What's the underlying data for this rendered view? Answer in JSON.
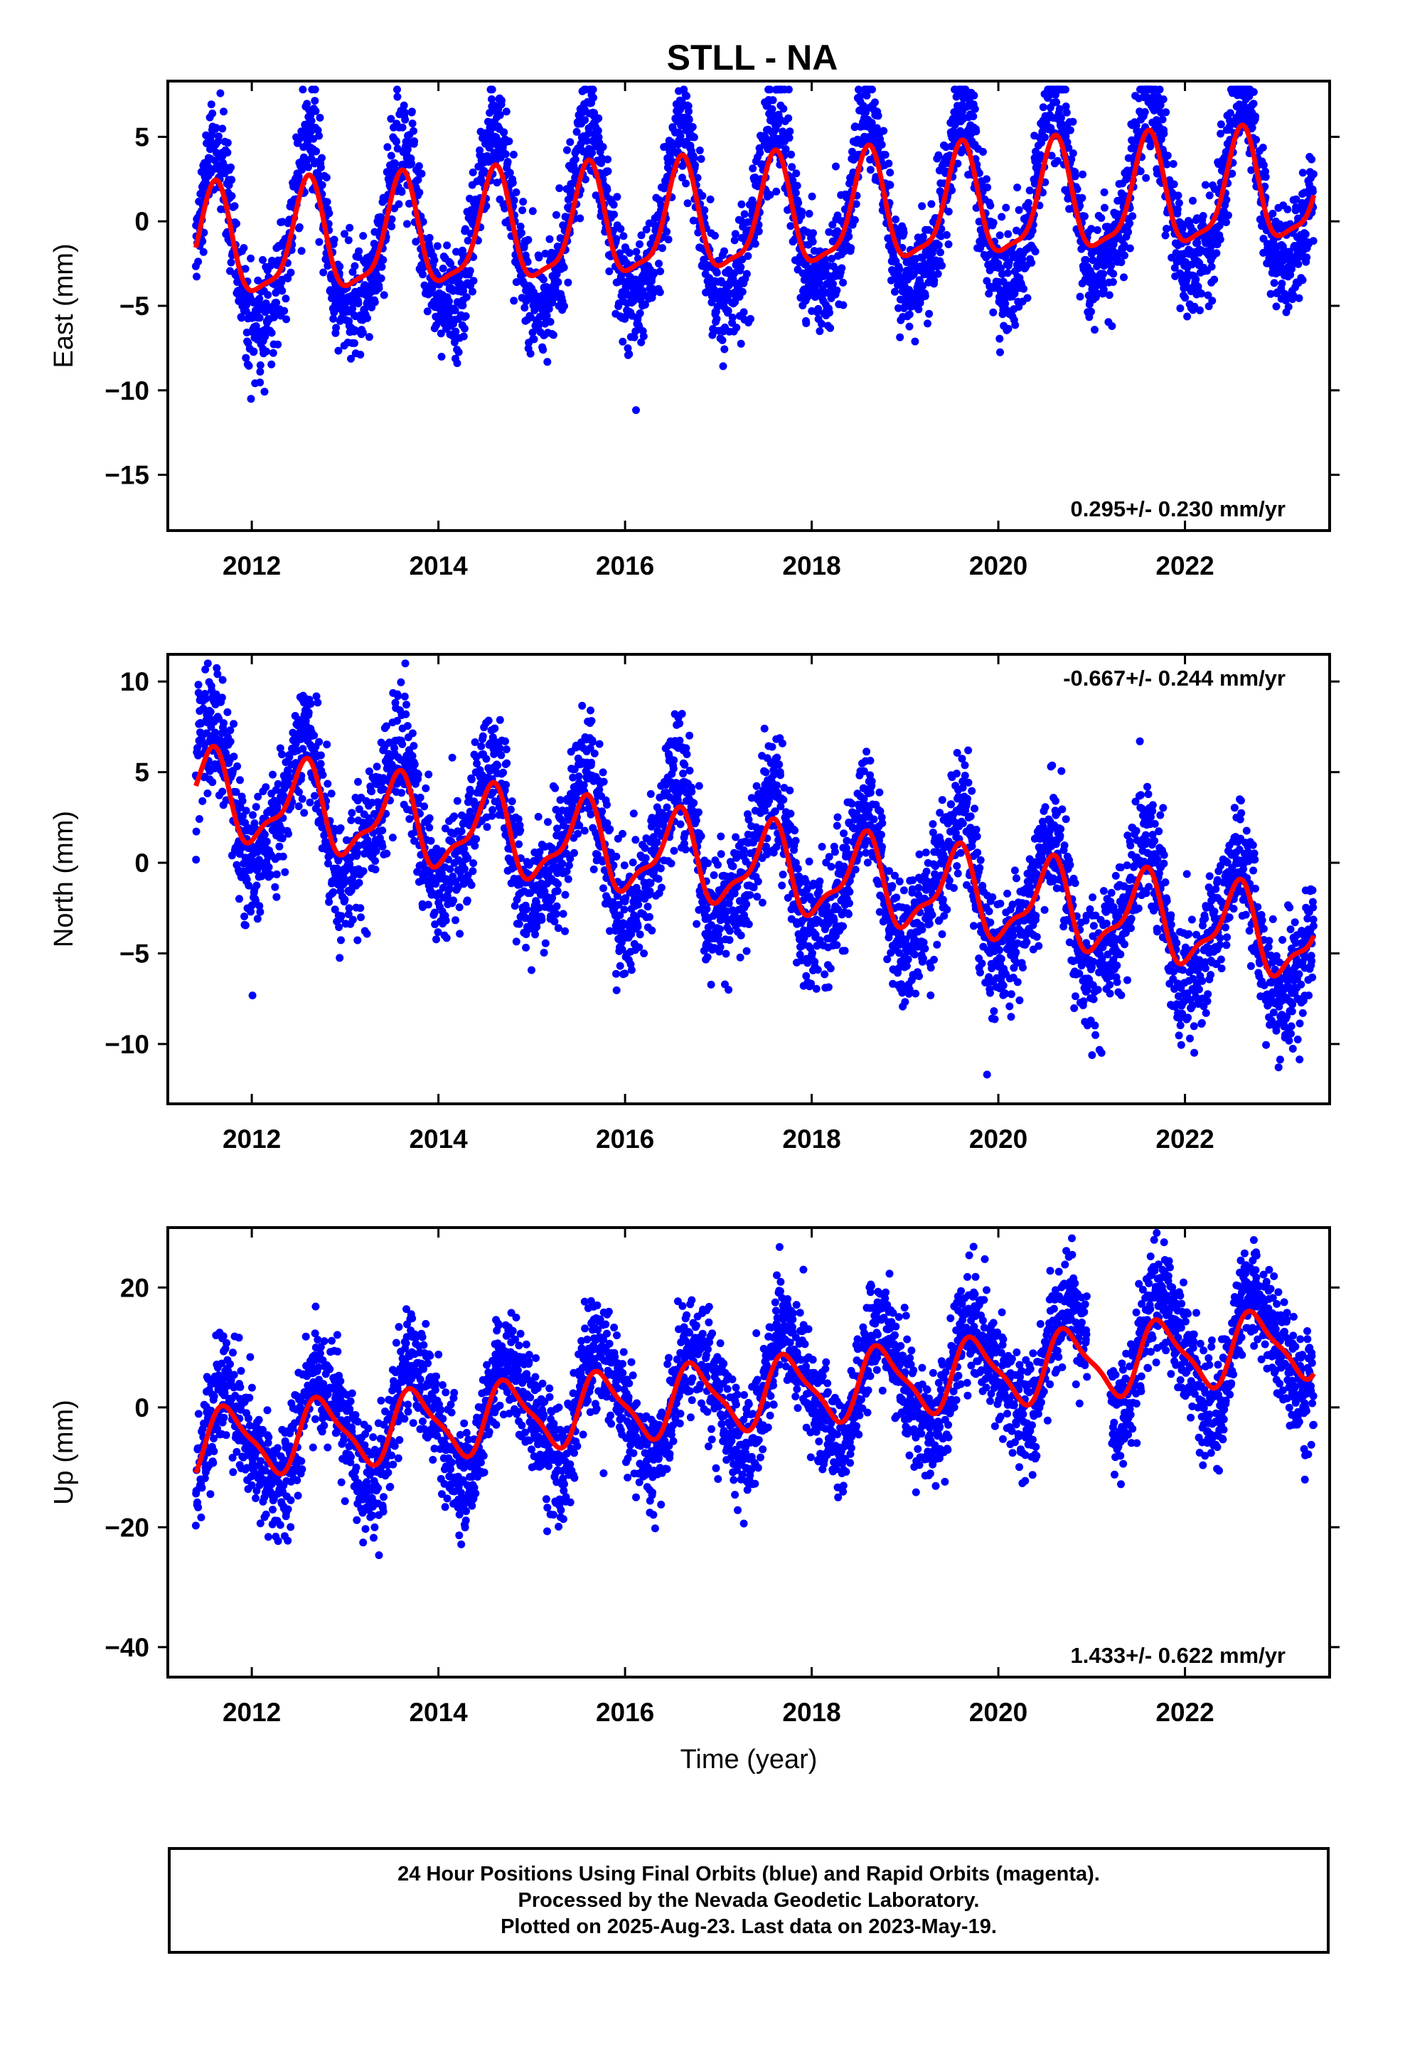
{
  "colors": {
    "data": "#0000ff",
    "model": "#ff0000",
    "axis": "#000000"
  },
  "footer": {
    "line1": "24 Hour Positions Using Final Orbits (blue) and Rapid Orbits (magenta).",
    "line2": "Processed by the Nevada Geodetic Laboratory.",
    "line3": "Plotted on 2025-Aug-23. Last data on 2023-May-19."
  },
  "chart_data": [
    {
      "type": "scatter",
      "title": "STLL - NA",
      "ylabel": "East (mm)",
      "xlabel": "",
      "xlim": [
        2011.1,
        2023.55
      ],
      "ylim": [
        -18.3,
        8.3
      ],
      "xticks": [
        2012,
        2014,
        2016,
        2018,
        2020,
        2022
      ],
      "yticks": [
        5,
        0,
        -5,
        -10,
        -15
      ],
      "grid": false,
      "rate_text": "0.295+/- 0.230 mm/yr",
      "rate_position": "bottom-right",
      "series": [
        {
          "kind": "points",
          "values": [],
          "range": [
            2011.4,
            2023.38
          ]
        },
        {
          "kind": "line",
          "values": []
        }
      ],
      "model": {
        "rate": 0.295,
        "annual_amp": 3.2,
        "annual_phase_peak": 0.6,
        "semiannual_amp": 0.9,
        "start_value": -0.7,
        "start_year": 2011.4,
        "end_year": 2023.38
      }
    },
    {
      "type": "scatter",
      "title": "",
      "ylabel": "North (mm)",
      "xlabel": "",
      "xlim": [
        2011.1,
        2023.55
      ],
      "ylim": [
        -13.3,
        11.5
      ],
      "xticks": [
        2012,
        2014,
        2016,
        2018,
        2020,
        2022
      ],
      "yticks": [
        10,
        5,
        0,
        -5,
        -10
      ],
      "grid": false,
      "rate_text": "-0.667+/- 0.244 mm/yr",
      "rate_position": "top-right",
      "series": [
        {
          "kind": "points",
          "values": [],
          "range": [
            2011.4,
            2023.38
          ]
        },
        {
          "kind": "line",
          "values": []
        }
      ],
      "model": {
        "rate": -0.667,
        "annual_amp": 2.2,
        "annual_phase_peak": 0.55,
        "semiannual_amp": 0.8,
        "start_value": 5.0,
        "start_year": 2011.4,
        "end_year": 2023.38
      }
    },
    {
      "type": "scatter",
      "title": "",
      "ylabel": "Up (mm)",
      "xlabel": "Time (year)",
      "xlim": [
        2011.1,
        2023.55
      ],
      "ylim": [
        -45,
        30
      ],
      "xticks": [
        2012,
        2014,
        2016,
        2018,
        2020,
        2022
      ],
      "yticks": [
        20,
        0,
        -20,
        -40
      ],
      "grid": false,
      "rate_text": "1.433+/- 0.622 mm/yr",
      "rate_position": "bottom-right",
      "series": [
        {
          "kind": "points",
          "values": [],
          "range": [
            2011.4,
            2023.38
          ]
        },
        {
          "kind": "line",
          "values": []
        }
      ],
      "model": {
        "rate": 1.433,
        "annual_amp": 5.5,
        "annual_phase_peak": 0.75,
        "semiannual_amp": 1.5,
        "start_value": -9.5,
        "start_year": 2011.4,
        "end_year": 2023.38
      }
    }
  ]
}
